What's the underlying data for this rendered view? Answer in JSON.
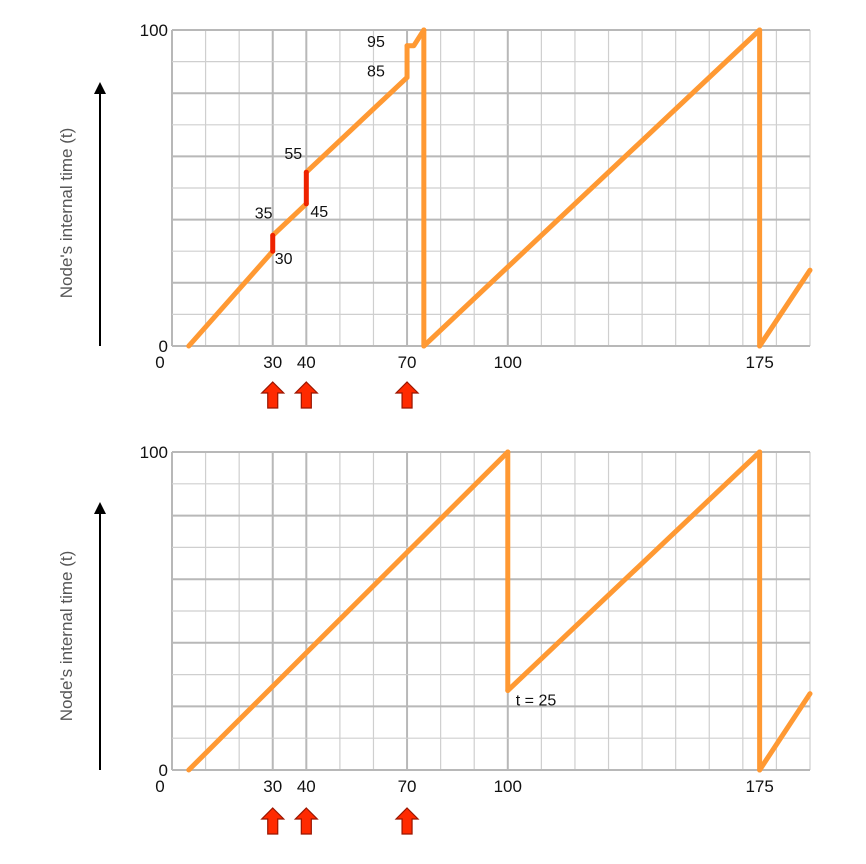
{
  "colors": {
    "line": "#ff9933",
    "jump": "#ee2200",
    "arrow_fill": "#ff2a00",
    "arrow_stroke": "#991500",
    "grid_minor": "#cfcfcf",
    "grid_major": "#b8b8b8",
    "axis_arrow": "#000000",
    "text": "#111111",
    "ylabel": "#555555"
  },
  "chart_data": [
    {
      "type": "line",
      "ylabel": "Node's internal time (t)",
      "xlim": [
        0,
        190
      ],
      "ylim": [
        0,
        100
      ],
      "grid": true,
      "x_ticks": [
        {
          "value": 0,
          "label": "0"
        },
        {
          "value": 30,
          "label": "30"
        },
        {
          "value": 40,
          "label": "40"
        },
        {
          "value": 70,
          "label": "70"
        },
        {
          "value": 100,
          "label": "100"
        },
        {
          "value": 175,
          "label": "175"
        }
      ],
      "y_ticks": [
        {
          "value": 0,
          "label": "0"
        },
        {
          "value": 100,
          "label": "100"
        }
      ],
      "series": [
        {
          "segments": [
            [
              [
                5,
                0
              ],
              [
                30,
                30
              ]
            ],
            [
              [
                30,
                35
              ],
              [
                40,
                45
              ]
            ],
            [
              [
                40,
                55
              ],
              [
                70,
                85
              ]
            ],
            [
              [
                70,
                95
              ],
              [
                72,
                95
              ],
              [
                75,
                100
              ]
            ],
            [
              [
                75,
                0
              ],
              [
                175,
                100
              ]
            ],
            [
              [
                175,
                0
              ],
              [
                190,
                24
              ]
            ]
          ],
          "drops": [
            [
              [
                75,
                100
              ],
              [
                75,
                0
              ]
            ],
            [
              [
                175,
                100
              ],
              [
                175,
                0
              ]
            ]
          ],
          "jumps": [
            [
              [
                30,
                30
              ],
              [
                30,
                35
              ]
            ],
            [
              [
                40,
                45
              ],
              [
                40,
                55
              ]
            ],
            [
              [
                70,
                85
              ],
              [
                70,
                95
              ]
            ]
          ],
          "jump_colored": [
            true,
            true,
            false
          ]
        }
      ],
      "annotations": [
        {
          "text": "35",
          "x": 30,
          "y": 35
        },
        {
          "text": "30",
          "x": 30,
          "y": 30
        },
        {
          "text": "55",
          "x": 40,
          "y": 55
        },
        {
          "text": "45",
          "x": 40,
          "y": 45
        },
        {
          "text": "95",
          "x": 70,
          "y": 95
        },
        {
          "text": "85",
          "x": 70,
          "y": 85
        }
      ],
      "event_markers": [
        30,
        40,
        70
      ]
    },
    {
      "type": "line",
      "ylabel": "Node's internal time (t)",
      "xlim": [
        0,
        190
      ],
      "ylim": [
        0,
        100
      ],
      "grid": true,
      "x_ticks": [
        {
          "value": 0,
          "label": "0"
        },
        {
          "value": 30,
          "label": "30"
        },
        {
          "value": 40,
          "label": "40"
        },
        {
          "value": 70,
          "label": "70"
        },
        {
          "value": 100,
          "label": "100"
        },
        {
          "value": 175,
          "label": "175"
        }
      ],
      "y_ticks": [
        {
          "value": 0,
          "label": "0"
        },
        {
          "value": 100,
          "label": "100"
        }
      ],
      "series": [
        {
          "segments": [
            [
              [
                5,
                0
              ],
              [
                100,
                100
              ]
            ],
            [
              [
                100,
                25
              ],
              [
                175,
                100
              ]
            ],
            [
              [
                175,
                0
              ],
              [
                190,
                24
              ]
            ]
          ],
          "drops": [
            [
              [
                100,
                100
              ],
              [
                100,
                25
              ]
            ],
            [
              [
                175,
                100
              ],
              [
                175,
                0
              ]
            ]
          ],
          "jumps": [],
          "jump_colored": []
        }
      ],
      "annotations": [
        {
          "text": "t = 25",
          "x": 100,
          "y": 25
        }
      ],
      "event_markers": [
        30,
        40,
        70
      ]
    }
  ]
}
